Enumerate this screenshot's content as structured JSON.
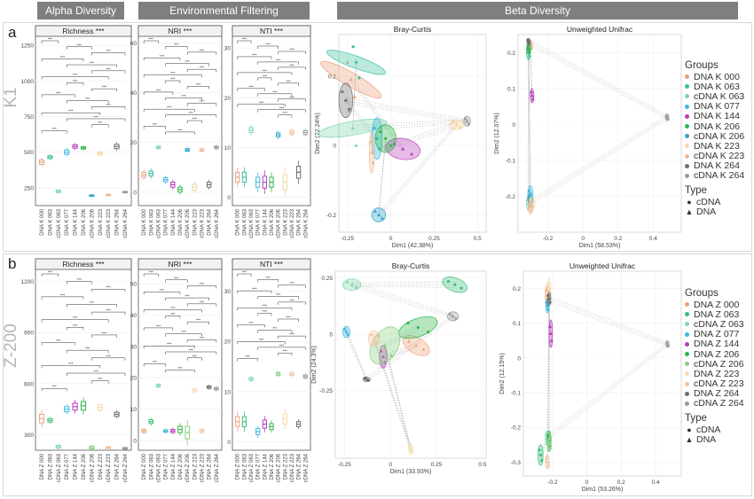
{
  "headers": {
    "alpha": "Alpha Diversity",
    "env": "Environmental Filtering",
    "beta": "Beta Diversity"
  },
  "rows": [
    {
      "panel_letter": "a",
      "site": "K1",
      "colors": [
        "#e8a07a",
        "#3cbfa0",
        "#7fd6ac",
        "#3fb8e0",
        "#b83dba",
        "#2eb84a",
        "#2fa4c8",
        "#f3d6a0",
        "#f1b892",
        "#6e6e6e",
        "#9a9a9a"
      ],
      "legend_groups": [
        "DNA K 000",
        "DNA K 063",
        "cDNA K 063",
        "DNA K 077",
        "DNA K 144",
        "DNA K 206",
        "cDNA K 206",
        "DNA K 223",
        "cDNA K 223",
        "DNA K 264",
        "cDNA K 264"
      ],
      "legend_type_title": "Type",
      "legend_groups_title": "Groups",
      "legend_types": [
        "cDNA",
        "DNA"
      ],
      "chart_data": [
        {
          "type": "box",
          "title": "Richness ***",
          "categories": [
            "DNA K 000",
            "DNA K 063",
            "cDNA K 063",
            "DNA K 077",
            "DNA K 144",
            "DNA K 206",
            "cDNA K 206",
            "DNA K 223",
            "cDNA K 223",
            "DNA K 264",
            "cDNA K 264"
          ],
          "medians": [
            430,
            465,
            225,
            500,
            540,
            530,
            195,
            490,
            200,
            540,
            220
          ],
          "spread": [
            15,
            10,
            8,
            15,
            12,
            8,
            5,
            10,
            5,
            15,
            5
          ],
          "ylim": [
            150,
            1300
          ],
          "yticks": [
            250,
            500,
            750,
            1000,
            1250
          ],
          "brackets": 16
        },
        {
          "type": "box",
          "title": "NRI ***",
          "categories": [
            "DNA K 000",
            "DNA K 063",
            "cDNA K 063",
            "DNA K 077",
            "DNA K 144",
            "DNA K 206",
            "cDNA K 206",
            "DNA K 223",
            "cDNA K 223",
            "DNA K 264",
            "cDNA K 264"
          ],
          "medians": [
            7,
            7.5,
            18,
            5,
            3,
            1,
            17,
            2,
            17,
            3,
            18
          ],
          "spread": [
            1,
            1,
            0.5,
            0.8,
            1,
            1,
            0.5,
            1.2,
            0.5,
            1,
            0.5
          ],
          "ylim": [
            -4,
            62
          ],
          "yticks": [
            0,
            20,
            40,
            60
          ],
          "brackets": 17
        },
        {
          "type": "box",
          "title": "NTI ***",
          "categories": [
            "DNA K 000",
            "DNA K 063",
            "cDNA K 063",
            "DNA K 077",
            "DNA K 144",
            "DNA K 206",
            "cDNA K 206",
            "DNA K 223",
            "cDNA K 223",
            "DNA K 264",
            "cDNA K 264"
          ],
          "medians": [
            4,
            4,
            13.5,
            3,
            3,
            3,
            12.5,
            3,
            13,
            5,
            13
          ],
          "spread": [
            1,
            1,
            0.5,
            1,
            1.2,
            1,
            0.4,
            1.5,
            0.4,
            1.2,
            0.4
          ],
          "ylim": [
            -1,
            32
          ],
          "yticks": [
            0,
            10,
            20,
            30
          ],
          "brackets": 15
        },
        {
          "type": "scatter",
          "title": "Bray-Curtis",
          "xlabel": "Dim1 (42.38%)",
          "ylabel": "Dim2 (22.24%)",
          "xlim": [
            -0.3,
            0.55
          ],
          "ylim": [
            -0.25,
            0.32
          ],
          "xticks": [
            -0.25,
            0,
            0.25,
            0.5
          ],
          "yticks": [
            -0.2,
            0,
            0.2
          ],
          "clusters": [
            [
              -0.23,
              0.19,
              0.04,
              0.1,
              -60
            ],
            [
              -0.2,
              0.24,
              0.035,
              0.09,
              -70
            ],
            [
              -0.22,
              0.05,
              0.04,
              0.1,
              80
            ],
            [
              -0.08,
              0.02,
              0.03,
              0.06,
              0
            ],
            [
              0.07,
              -0.01,
              0.1,
              0.03,
              10
            ],
            [
              -0.03,
              0.02,
              0.06,
              0.04,
              0
            ],
            [
              -0.07,
              -0.2,
              0.04,
              0.02,
              0
            ],
            [
              0.38,
              0.06,
              0.04,
              0.015,
              0
            ],
            [
              -0.11,
              -0.02,
              0.015,
              0.06,
              0
            ],
            [
              -0.26,
              0.13,
              0.04,
              0.05,
              0
            ],
            [
              0.44,
              0.07,
              0.02,
              0.015,
              0
            ]
          ]
        },
        {
          "type": "scatter",
          "title": "Unweighted Unifrac",
          "xlabel": "Dim1 (58.53%)",
          "ylabel": "Dim2 (12.07%)",
          "xlim": [
            -0.37,
            0.56
          ],
          "ylim": [
            -0.3,
            0.25
          ],
          "xticks": [
            -0.2,
            0,
            0.2,
            0.4
          ],
          "yticks": [
            -0.2,
            -0.1,
            0,
            0.1,
            0.2
          ],
          "clusters": [
            [
              -0.3,
              0.22,
              0.012,
              0.015,
              0
            ],
            [
              -0.31,
              0.2,
              0.012,
              0.02,
              0
            ],
            [
              -0.31,
              -0.22,
              0.012,
              0.02,
              0
            ],
            [
              -0.3,
              -0.2,
              0.015,
              0.03,
              0
            ],
            [
              -0.29,
              0.08,
              0.01,
              0.02,
              0
            ],
            [
              -0.31,
              0.21,
              0.01,
              0.015,
              0
            ],
            [
              -0.3,
              -0.21,
              0.012,
              0.02,
              0
            ],
            [
              -0.29,
              -0.22,
              0.015,
              0.02,
              0
            ],
            [
              -0.3,
              -0.23,
              0.012,
              0.02,
              0
            ],
            [
              -0.31,
              0.23,
              0.01,
              0.01,
              0
            ],
            [
              0.48,
              0.02,
              0.01,
              0.01,
              0
            ]
          ]
        }
      ]
    },
    {
      "panel_letter": "b",
      "site": "Z-200",
      "colors": [
        "#f1a37c",
        "#3bbf7a",
        "#7fd6ac",
        "#3fb8e0",
        "#b83dba",
        "#2eb84a",
        "#86d07e",
        "#f6dcae",
        "#f4c29b",
        "#6e6e6e",
        "#9a9a9a"
      ],
      "legend_groups": [
        "DNA Z 000",
        "DNA Z 063",
        "cDNA Z 063",
        "DNA Z 077",
        "DNA Z 144",
        "DNA Z 206",
        "cDNA Z 206",
        "DNA Z 223",
        "cDNA Z 223",
        "DNA Z 264",
        "cDNA Z 264"
      ],
      "legend_type_title": "Type",
      "legend_groups_title": "Groups",
      "legend_types": [
        "cDNA",
        "DNA"
      ],
      "chart_data": [
        {
          "type": "box",
          "title": "Richness ***",
          "categories": [
            "DNA Z 000",
            "DNA Z 063",
            "cDNA Z 063",
            "DNA Z 077",
            "DNA Z 144",
            "DNA Z 206",
            "cDNA Z 206",
            "DNA Z 223",
            "cDNA Z 223",
            "DNA Z 264",
            "cDNA Z 264"
          ],
          "medians": [
            395,
            385,
            230,
            450,
            465,
            470,
            225,
            460,
            225,
            420,
            220
          ],
          "spread": [
            25,
            10,
            8,
            15,
            20,
            25,
            8,
            15,
            5,
            12,
            5
          ],
          "ylim": [
            230,
            1260
          ],
          "yticks": [
            300,
            600,
            900,
            1200
          ],
          "brackets": 16
        },
        {
          "type": "box",
          "title": "NRI ***",
          "categories": [
            "DNA Z 000",
            "DNA Z 063",
            "cDNA Z 063",
            "DNA Z 077",
            "DNA Z 144",
            "DNA Z 206",
            "cDNA Z 206",
            "DNA Z 223",
            "cDNA Z 223",
            "DNA Z 264",
            "cDNA Z 264"
          ],
          "medians": [
            3,
            6,
            17.5,
            3,
            3,
            3.5,
            2.5,
            16,
            3,
            17,
            16.5
          ],
          "spread": [
            0.5,
            0.6,
            0.4,
            0.4,
            0.5,
            1,
            2,
            0.5,
            0.5,
            0.4,
            0.4
          ],
          "ylim": [
            -2,
            54
          ],
          "yticks": [
            0,
            10,
            20,
            30,
            40,
            50
          ],
          "brackets": 17
        },
        {
          "type": "box",
          "title": "NTI ***",
          "categories": [
            "DNA Z 000",
            "DNA Z 063",
            "cDNA Z 063",
            "DNA Z 077",
            "DNA Z 144",
            "DNA Z 206",
            "cDNA Z 206",
            "DNA Z 223",
            "cDNA Z 223",
            "DNA Z 264",
            "cDNA Z 264"
          ],
          "medians": [
            4,
            4,
            12.5,
            2,
            3.5,
            3,
            13.5,
            4.5,
            13.5,
            3.5,
            13
          ],
          "spread": [
            1,
            1,
            0.3,
            0.6,
            0.8,
            0.6,
            0.3,
            1,
            0.3,
            0.5,
            0.3
          ],
          "ylim": [
            -1,
            34
          ],
          "yticks": [
            0,
            10,
            20,
            30
          ],
          "brackets": 16
        },
        {
          "type": "scatter",
          "title": "Bray-Curtis",
          "xlabel": "Dim1 (33.93%)",
          "ylabel": "Dim2 (24.3%)",
          "xlim": [
            -0.3,
            0.52
          ],
          "ylim": [
            -0.55,
            0.28
          ],
          "xticks": [
            -0.25,
            0,
            0.25,
            0.5
          ],
          "yticks": [
            -0.25,
            0,
            0.25
          ],
          "clusters": [
            [
              0.14,
              -0.05,
              0.08,
              0.035,
              30
            ],
            [
              0.35,
              0.22,
              0.07,
              0.03,
              20
            ],
            [
              -0.21,
              0.22,
              0.05,
              0.025,
              0
            ],
            [
              -0.24,
              0.01,
              0.02,
              0.025,
              0
            ],
            [
              -0.04,
              -0.1,
              0.02,
              0.05,
              0
            ],
            [
              0.15,
              0.03,
              0.11,
              0.04,
              -20
            ],
            [
              -0.03,
              -0.05,
              0.07,
              0.09,
              30
            ],
            [
              0.11,
              -0.51,
              0.012,
              0.025,
              0
            ],
            [
              -0.09,
              -0.02,
              0.03,
              0.035,
              0
            ],
            [
              -0.13,
              -0.2,
              0.02,
              0.01,
              0
            ],
            [
              0.34,
              0.08,
              0.03,
              0.02,
              0
            ]
          ]
        },
        {
          "type": "scatter",
          "title": "Unweighted Unifrac",
          "xlabel": "Dim1 (53.26%)",
          "ylabel": "Dim2 (12.15%)",
          "xlim": [
            -0.37,
            0.55
          ],
          "ylim": [
            -0.34,
            0.25
          ],
          "xticks": [
            -0.2,
            0,
            0.2,
            0.4
          ],
          "yticks": [
            -0.3,
            -0.2,
            -0.1,
            0,
            0.1,
            0.2
          ],
          "clusters": [
            [
              -0.23,
              0.18,
              0.012,
              0.03,
              0
            ],
            [
              -0.27,
              -0.28,
              0.015,
              0.03,
              0
            ],
            [
              -0.23,
              -0.23,
              0.012,
              0.02,
              0
            ],
            [
              -0.23,
              0.15,
              0.01,
              0.02,
              0
            ],
            [
              -0.21,
              0.07,
              0.01,
              0.04,
              0
            ],
            [
              -0.22,
              -0.24,
              0.012,
              0.03,
              0
            ],
            [
              -0.22,
              -0.25,
              0.012,
              0.02,
              0
            ],
            [
              -0.22,
              0.2,
              0.01,
              0.03,
              0
            ],
            [
              -0.23,
              -0.3,
              0.012,
              0.02,
              0
            ],
            [
              -0.22,
              0.17,
              0.01,
              0.02,
              0
            ],
            [
              0.47,
              0.04,
              0.01,
              0.01,
              0
            ]
          ]
        }
      ]
    }
  ]
}
